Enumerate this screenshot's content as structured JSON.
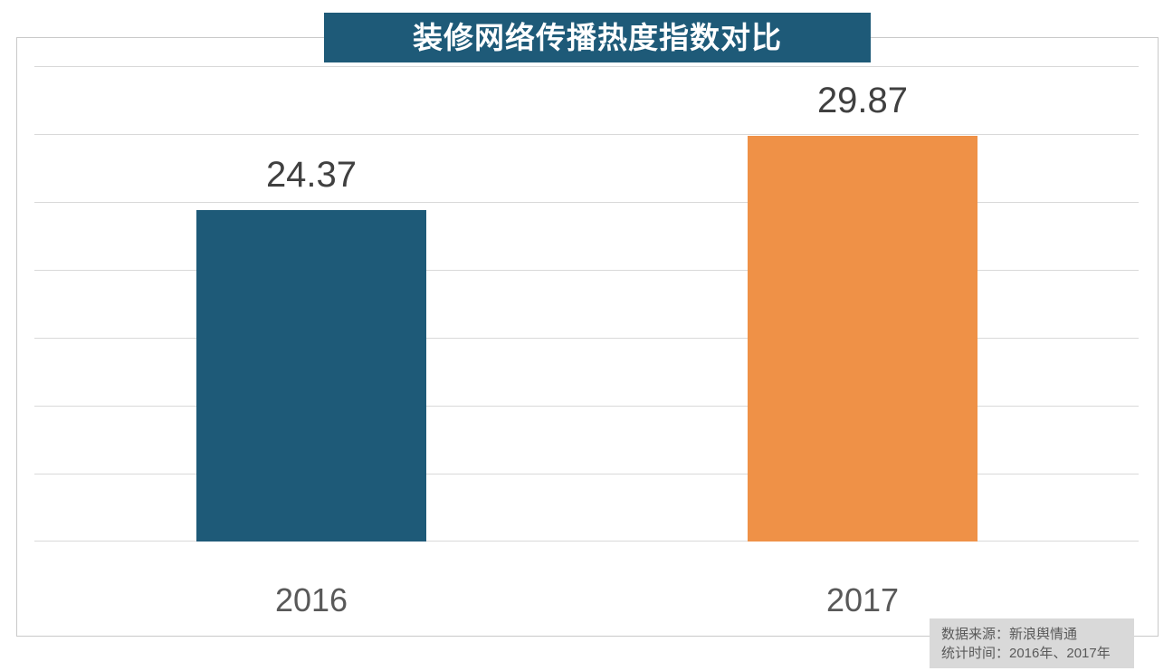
{
  "chart_data": {
    "type": "bar",
    "title": "装修网络传播热度指数对比",
    "categories": [
      "2016",
      "2017"
    ],
    "values": [
      24.37,
      29.87
    ],
    "value_labels": [
      "24.37",
      "29.87"
    ],
    "bar_colors": [
      "#1e5a78",
      "#ef9147"
    ],
    "xlabel": "",
    "ylabel": "",
    "ylim": [
      0,
      35
    ],
    "gridline_step": 5,
    "grid": true,
    "legend": false
  },
  "title_box": {
    "background": "#1e5a78",
    "text_color": "#ffffff"
  },
  "source_note": {
    "line1": "数据来源：新浪舆情通",
    "line2": "统计时间：2016年、2017年",
    "background": "#d9d9d9"
  }
}
